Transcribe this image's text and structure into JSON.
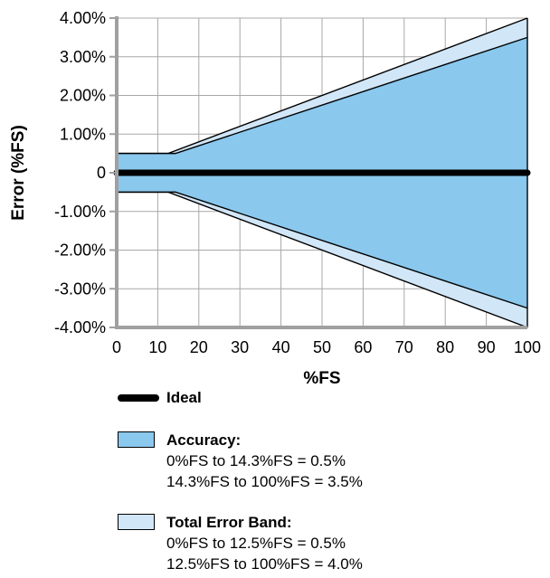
{
  "chart_data": {
    "type": "area",
    "xlabel": "%FS",
    "ylabel": "Error (%FS)",
    "xlim": [
      0,
      100
    ],
    "ylim": [
      -4,
      4
    ],
    "x_ticks": [
      "0",
      "10",
      "20",
      "30",
      "40",
      "50",
      "60",
      "70",
      "80",
      "90",
      "100"
    ],
    "y_ticks": [
      "4.00%",
      "3.00%",
      "2.00%",
      "1.00%",
      "0",
      "-1.00%",
      "-2.00%",
      "-3.00%",
      "-4.00%"
    ],
    "grid": true,
    "series": [
      {
        "name": "Total Error Band",
        "color": "#d1e6f7",
        "upper": [
          [
            0,
            0.5
          ],
          [
            12.5,
            0.5
          ],
          [
            100,
            4.0
          ]
        ],
        "lower": [
          [
            0,
            -0.5
          ],
          [
            12.5,
            -0.5
          ],
          [
            100,
            -4.0
          ]
        ]
      },
      {
        "name": "Accuracy",
        "color": "#8ac8ee",
        "upper": [
          [
            0,
            0.5
          ],
          [
            14.3,
            0.5
          ],
          [
            100,
            3.5
          ]
        ],
        "lower": [
          [
            0,
            -0.5
          ],
          [
            14.3,
            -0.5
          ],
          [
            100,
            -3.5
          ]
        ]
      },
      {
        "name": "Ideal",
        "color": "#000000",
        "points": [
          [
            0,
            0
          ],
          [
            100,
            0
          ]
        ]
      }
    ]
  },
  "legend": {
    "ideal": {
      "title": "Ideal"
    },
    "accuracy": {
      "title": "Accuracy:",
      "line1": "0%FS to 14.3%FS = 0.5%",
      "line2": "14.3%FS to 100%FS = 3.5%",
      "color": "#8ac8ee"
    },
    "total": {
      "title": "Total Error Band:",
      "line1": "0%FS to 12.5%FS = 0.5%",
      "line2": "12.5%FS to 100%FS = 4.0%",
      "color": "#d1e6f7"
    }
  }
}
